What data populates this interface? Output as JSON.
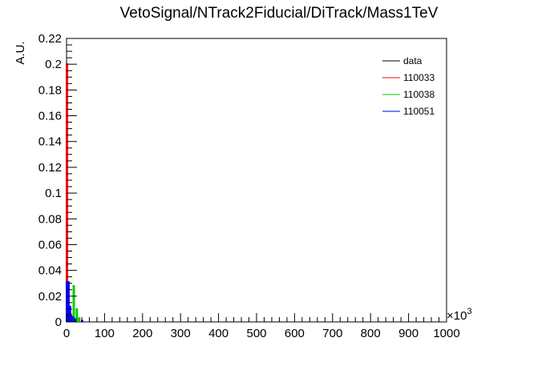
{
  "chart_data": {
    "type": "histogram",
    "title": "VetoSignal/NTrack2Fiducial/DiTrack/Mass1TeV",
    "ylabel": "A.U.",
    "xlabel": "",
    "x_multiplier_label": "×10",
    "x_multiplier_exp": "3",
    "xlim": [
      0,
      1000
    ],
    "ylim": [
      0,
      0.22
    ],
    "x_ticks": [
      "0",
      "100",
      "200",
      "300",
      "400",
      "500",
      "600",
      "700",
      "800",
      "900",
      "1000"
    ],
    "y_ticks": [
      "0",
      "0.02",
      "0.04",
      "0.06",
      "0.08",
      "0.1",
      "0.12",
      "0.14",
      "0.16",
      "0.18",
      "0.2",
      "0.22"
    ],
    "bin_width": 2,
    "series": [
      {
        "name": "data",
        "color": "#000000",
        "bins": []
      },
      {
        "name": "110033",
        "color": "#ff0000",
        "bins": [
          {
            "x": 0,
            "y": 0.2
          },
          {
            "x": 4,
            "y": 0.03
          },
          {
            "x": 10,
            "y": 0.006
          }
        ]
      },
      {
        "name": "110038",
        "color": "#00cc00",
        "bins": [
          {
            "x": 18,
            "y": 0.028
          },
          {
            "x": 26,
            "y": 0.01
          },
          {
            "x": 32,
            "y": 0.003
          }
        ]
      },
      {
        "name": "110051",
        "color": "#0000ff",
        "bins": [
          {
            "x": 0,
            "y": 0.031
          },
          {
            "x": 4,
            "y": 0.031
          },
          {
            "x": 8,
            "y": 0.012
          },
          {
            "x": 14,
            "y": 0.004
          },
          {
            "x": 22,
            "y": 0.002
          },
          {
            "x": 40,
            "y": 0.001
          }
        ]
      }
    ],
    "legend_position": "top-right"
  }
}
